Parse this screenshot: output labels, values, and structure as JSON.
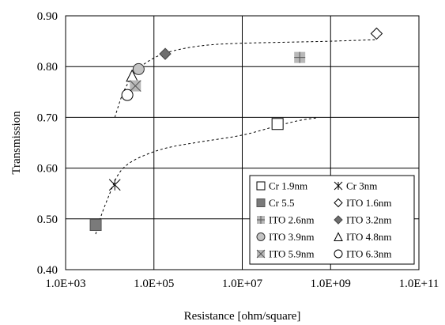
{
  "chart_data": {
    "type": "scatter",
    "xlabel": "Resistance [ohm/square]",
    "ylabel": "Transmission",
    "xscale": "log",
    "xlim": [
      1000,
      100000000000
    ],
    "ylim": [
      0.4,
      0.9
    ],
    "xticks": [
      1000,
      100000,
      10000000,
      1000000000,
      100000000000
    ],
    "xtick_labels": [
      "1.0E+03",
      "1.0E+05",
      "1.0E+07",
      "1.0E+09",
      "1.0E+11"
    ],
    "yticks": [
      0.4,
      0.5,
      0.6,
      0.7,
      0.8,
      0.9
    ],
    "ytick_labels": [
      "0.40",
      "0.50",
      "0.60",
      "0.70",
      "0.80",
      "0.90"
    ],
    "grid": true,
    "legend_position": "bottom-right",
    "series": [
      {
        "name": "Cr 1.9nm",
        "marker": "open-square",
        "x": 63000000,
        "y": 0.687
      },
      {
        "name": "Cr 3nm",
        "marker": "star",
        "x": 13000,
        "y": 0.567
      },
      {
        "name": "Cr 5.5",
        "marker": "filled-square-gray",
        "x": 4800,
        "y": 0.488
      },
      {
        "name": "ITO 1.6nm",
        "marker": "open-diamond",
        "x": 11000000000,
        "y": 0.865
      },
      {
        "name": "ITO 2.6nm",
        "marker": "plus-square-gray",
        "x": 200000000,
        "y": 0.818
      },
      {
        "name": "ITO 3.2nm",
        "marker": "filled-diamond-gray",
        "x": 180000,
        "y": 0.825
      },
      {
        "name": "ITO 3.9nm",
        "marker": "filled-circle-lightgray",
        "x": 45000,
        "y": 0.795
      },
      {
        "name": "ITO 4.8nm",
        "marker": "open-triangle",
        "x": 32000,
        "y": 0.782
      },
      {
        "name": "ITO 5.9nm",
        "marker": "x-square-gray",
        "x": 38000,
        "y": 0.762
      },
      {
        "name": "ITO 6.3nm",
        "marker": "open-circle",
        "x": 25000,
        "y": 0.744
      }
    ],
    "trend_lines": [
      {
        "style": "dashed",
        "points": [
          [
            4800,
            0.47
          ],
          [
            6500,
            0.508
          ],
          [
            10000,
            0.55
          ],
          [
            15000,
            0.585
          ],
          [
            25000,
            0.607
          ],
          [
            60000,
            0.625
          ],
          [
            200000,
            0.64
          ],
          [
            1000000,
            0.651
          ],
          [
            10000000,
            0.665
          ],
          [
            60000000,
            0.683
          ],
          [
            200000000,
            0.694
          ],
          [
            500000000,
            0.699
          ]
        ]
      },
      {
        "style": "dashed",
        "points": [
          [
            13000,
            0.7
          ],
          [
            20000,
            0.748
          ],
          [
            35000,
            0.785
          ],
          [
            60000,
            0.805
          ],
          [
            150000,
            0.824
          ],
          [
            500000,
            0.836
          ],
          [
            2000000,
            0.843
          ],
          [
            10000000,
            0.846
          ],
          [
            100000000,
            0.848
          ],
          [
            1000000000,
            0.85
          ],
          [
            11000000000,
            0.853
          ]
        ]
      }
    ]
  }
}
